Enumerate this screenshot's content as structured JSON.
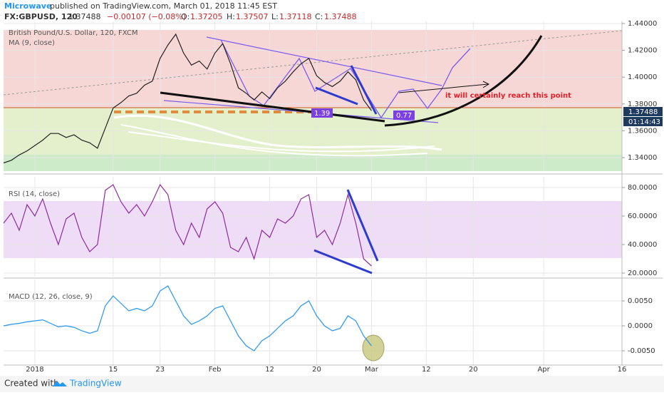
{
  "header": {
    "author": "Microwave",
    "published": "published on TradingView.com, March 01, 2018 11:45 EST",
    "symbol": "FX:GBPUSD, 120",
    "last": "1.37488",
    "change": "−0.00107 (−0.08%)",
    "o_label": "O:",
    "open": "1.37205",
    "h_label": "H:",
    "high": "1.37507",
    "l_label": "L:",
    "low": "1.37118",
    "c_label": "C:",
    "close": "1.37488"
  },
  "price_tag": "1.37488",
  "countdown": "01:14:43",
  "annotations": {
    "target": "it will certainly reach this point",
    "fib1": "1.39",
    "fib2": "0.77"
  },
  "footer": {
    "created": "Created with",
    "brand": "TradingView"
  },
  "chart_data": [
    {
      "type": "line",
      "title": "British Pound/U.S. Dollar, 120, FXCM",
      "subtitle": "MA (9, close)",
      "color": "#222222",
      "x": [
        -4,
        -3,
        -2,
        -1,
        0,
        1,
        2,
        3,
        4,
        5,
        6,
        7,
        8,
        9,
        10,
        11,
        12,
        13,
        14,
        15,
        16,
        17,
        18,
        19,
        20,
        21,
        22,
        23,
        24,
        25,
        26,
        27,
        28,
        29,
        30,
        31,
        32,
        33,
        34,
        35,
        36,
        37,
        38,
        39,
        40,
        41,
        42,
        43
      ],
      "values": [
        1.336,
        1.338,
        1.342,
        1.345,
        1.349,
        1.353,
        1.358,
        1.358,
        1.355,
        1.357,
        1.353,
        1.351,
        1.347,
        1.362,
        1.377,
        1.381,
        1.386,
        1.388,
        1.394,
        1.397,
        1.414,
        1.424,
        1.432,
        1.418,
        1.409,
        1.412,
        1.406,
        1.418,
        1.425,
        1.41,
        1.392,
        1.388,
        1.383,
        1.389,
        1.384,
        1.392,
        1.397,
        1.404,
        1.41,
        1.414,
        1.401,
        1.396,
        1.393,
        1.397,
        1.404,
        1.398,
        1.383,
        1.375
      ],
      "xlim": [
        -4,
        75
      ],
      "xticks": [
        {
          "value": 0,
          "label": "2018"
        },
        {
          "value": 10,
          "label": "15"
        },
        {
          "value": 16,
          "label": "23"
        },
        {
          "value": 23,
          "label": "Feb"
        },
        {
          "value": 30,
          "label": "12"
        },
        {
          "value": 36,
          "label": "20"
        },
        {
          "value": 43,
          "label": "Mar"
        },
        {
          "value": 50,
          "label": "12"
        },
        {
          "value": 56,
          "label": "20"
        },
        {
          "value": 65,
          "label": "Apr"
        },
        {
          "value": 75,
          "label": "16"
        }
      ],
      "ylim": [
        1.3299,
        1.4416
      ],
      "yticks": [
        {
          "value": 1.34,
          "label": "1.34000"
        },
        {
          "value": 1.36,
          "label": "1.36000"
        },
        {
          "value": 1.38,
          "label": "1.38000"
        },
        {
          "value": 1.4,
          "label": "1.40000"
        },
        {
          "value": 1.42,
          "label": "1.42000"
        },
        {
          "value": 1.44,
          "label": "1.44000"
        }
      ],
      "grid": true
    },
    {
      "type": "line",
      "title": "RSI (14, close)",
      "color": "#8e2c9e",
      "x": [
        -4,
        -3,
        -2,
        -1,
        0,
        1,
        2,
        3,
        4,
        5,
        6,
        7,
        8,
        9,
        10,
        11,
        12,
        13,
        14,
        15,
        16,
        17,
        18,
        19,
        20,
        21,
        22,
        23,
        24,
        25,
        26,
        27,
        28,
        29,
        30,
        31,
        32,
        33,
        34,
        35,
        36,
        37,
        38,
        39,
        40,
        41,
        42,
        43
      ],
      "values": [
        55,
        62,
        50,
        68,
        60,
        72,
        55,
        40,
        58,
        62,
        45,
        35,
        40,
        78,
        82,
        70,
        62,
        68,
        60,
        70,
        82,
        75,
        50,
        40,
        55,
        45,
        65,
        70,
        62,
        38,
        35,
        45,
        30,
        50,
        45,
        58,
        55,
        60,
        72,
        75,
        45,
        50,
        40,
        55,
        75,
        55,
        30,
        25
      ],
      "xlim": [
        -4,
        75
      ],
      "ylim": [
        17.5,
        87.5
      ],
      "yticks": [
        {
          "value": 20,
          "label": "20.0000"
        },
        {
          "value": 40,
          "label": "40.0000"
        },
        {
          "value": 60,
          "label": "60.0000"
        },
        {
          "value": 80,
          "label": "80.0000"
        }
      ],
      "grid": true
    },
    {
      "type": "line",
      "title": "MACD (12, 26, close, 9)",
      "color": "#2196f3",
      "x": [
        -4,
        -3,
        -2,
        -1,
        0,
        1,
        2,
        3,
        4,
        5,
        6,
        7,
        8,
        9,
        10,
        11,
        12,
        13,
        14,
        15,
        16,
        17,
        18,
        19,
        20,
        21,
        22,
        23,
        24,
        25,
        26,
        27,
        28,
        29,
        30,
        31,
        32,
        33,
        34,
        35,
        36,
        37,
        38,
        39,
        40,
        41,
        42,
        43
      ],
      "values": [
        0,
        0.0003,
        0.0005,
        0.0008,
        0.001,
        0.0012,
        0.0005,
        -0.0002,
        0,
        -0.0003,
        -0.001,
        -0.0015,
        -0.001,
        0.004,
        0.006,
        0.0045,
        0.003,
        0.0035,
        0.003,
        0.004,
        0.007,
        0.008,
        0.005,
        0.002,
        0.0003,
        0.001,
        0.002,
        0.0035,
        0.004,
        0.001,
        -0.002,
        -0.004,
        -0.005,
        -0.003,
        -0.002,
        -0.0005,
        0.001,
        0.002,
        0.004,
        0.005,
        0.002,
        0,
        -0.001,
        -0.0005,
        0.002,
        0.001,
        -0.002,
        -0.004
      ],
      "xlim": [
        -4,
        75
      ],
      "ylim": [
        -0.00786,
        0.00929
      ],
      "yticks": [
        {
          "value": -0.005,
          "label": "-0.0050"
        },
        {
          "value": 0,
          "label": "0.0000"
        },
        {
          "value": 0.005,
          "label": "0.0050"
        }
      ],
      "grid": true
    }
  ]
}
